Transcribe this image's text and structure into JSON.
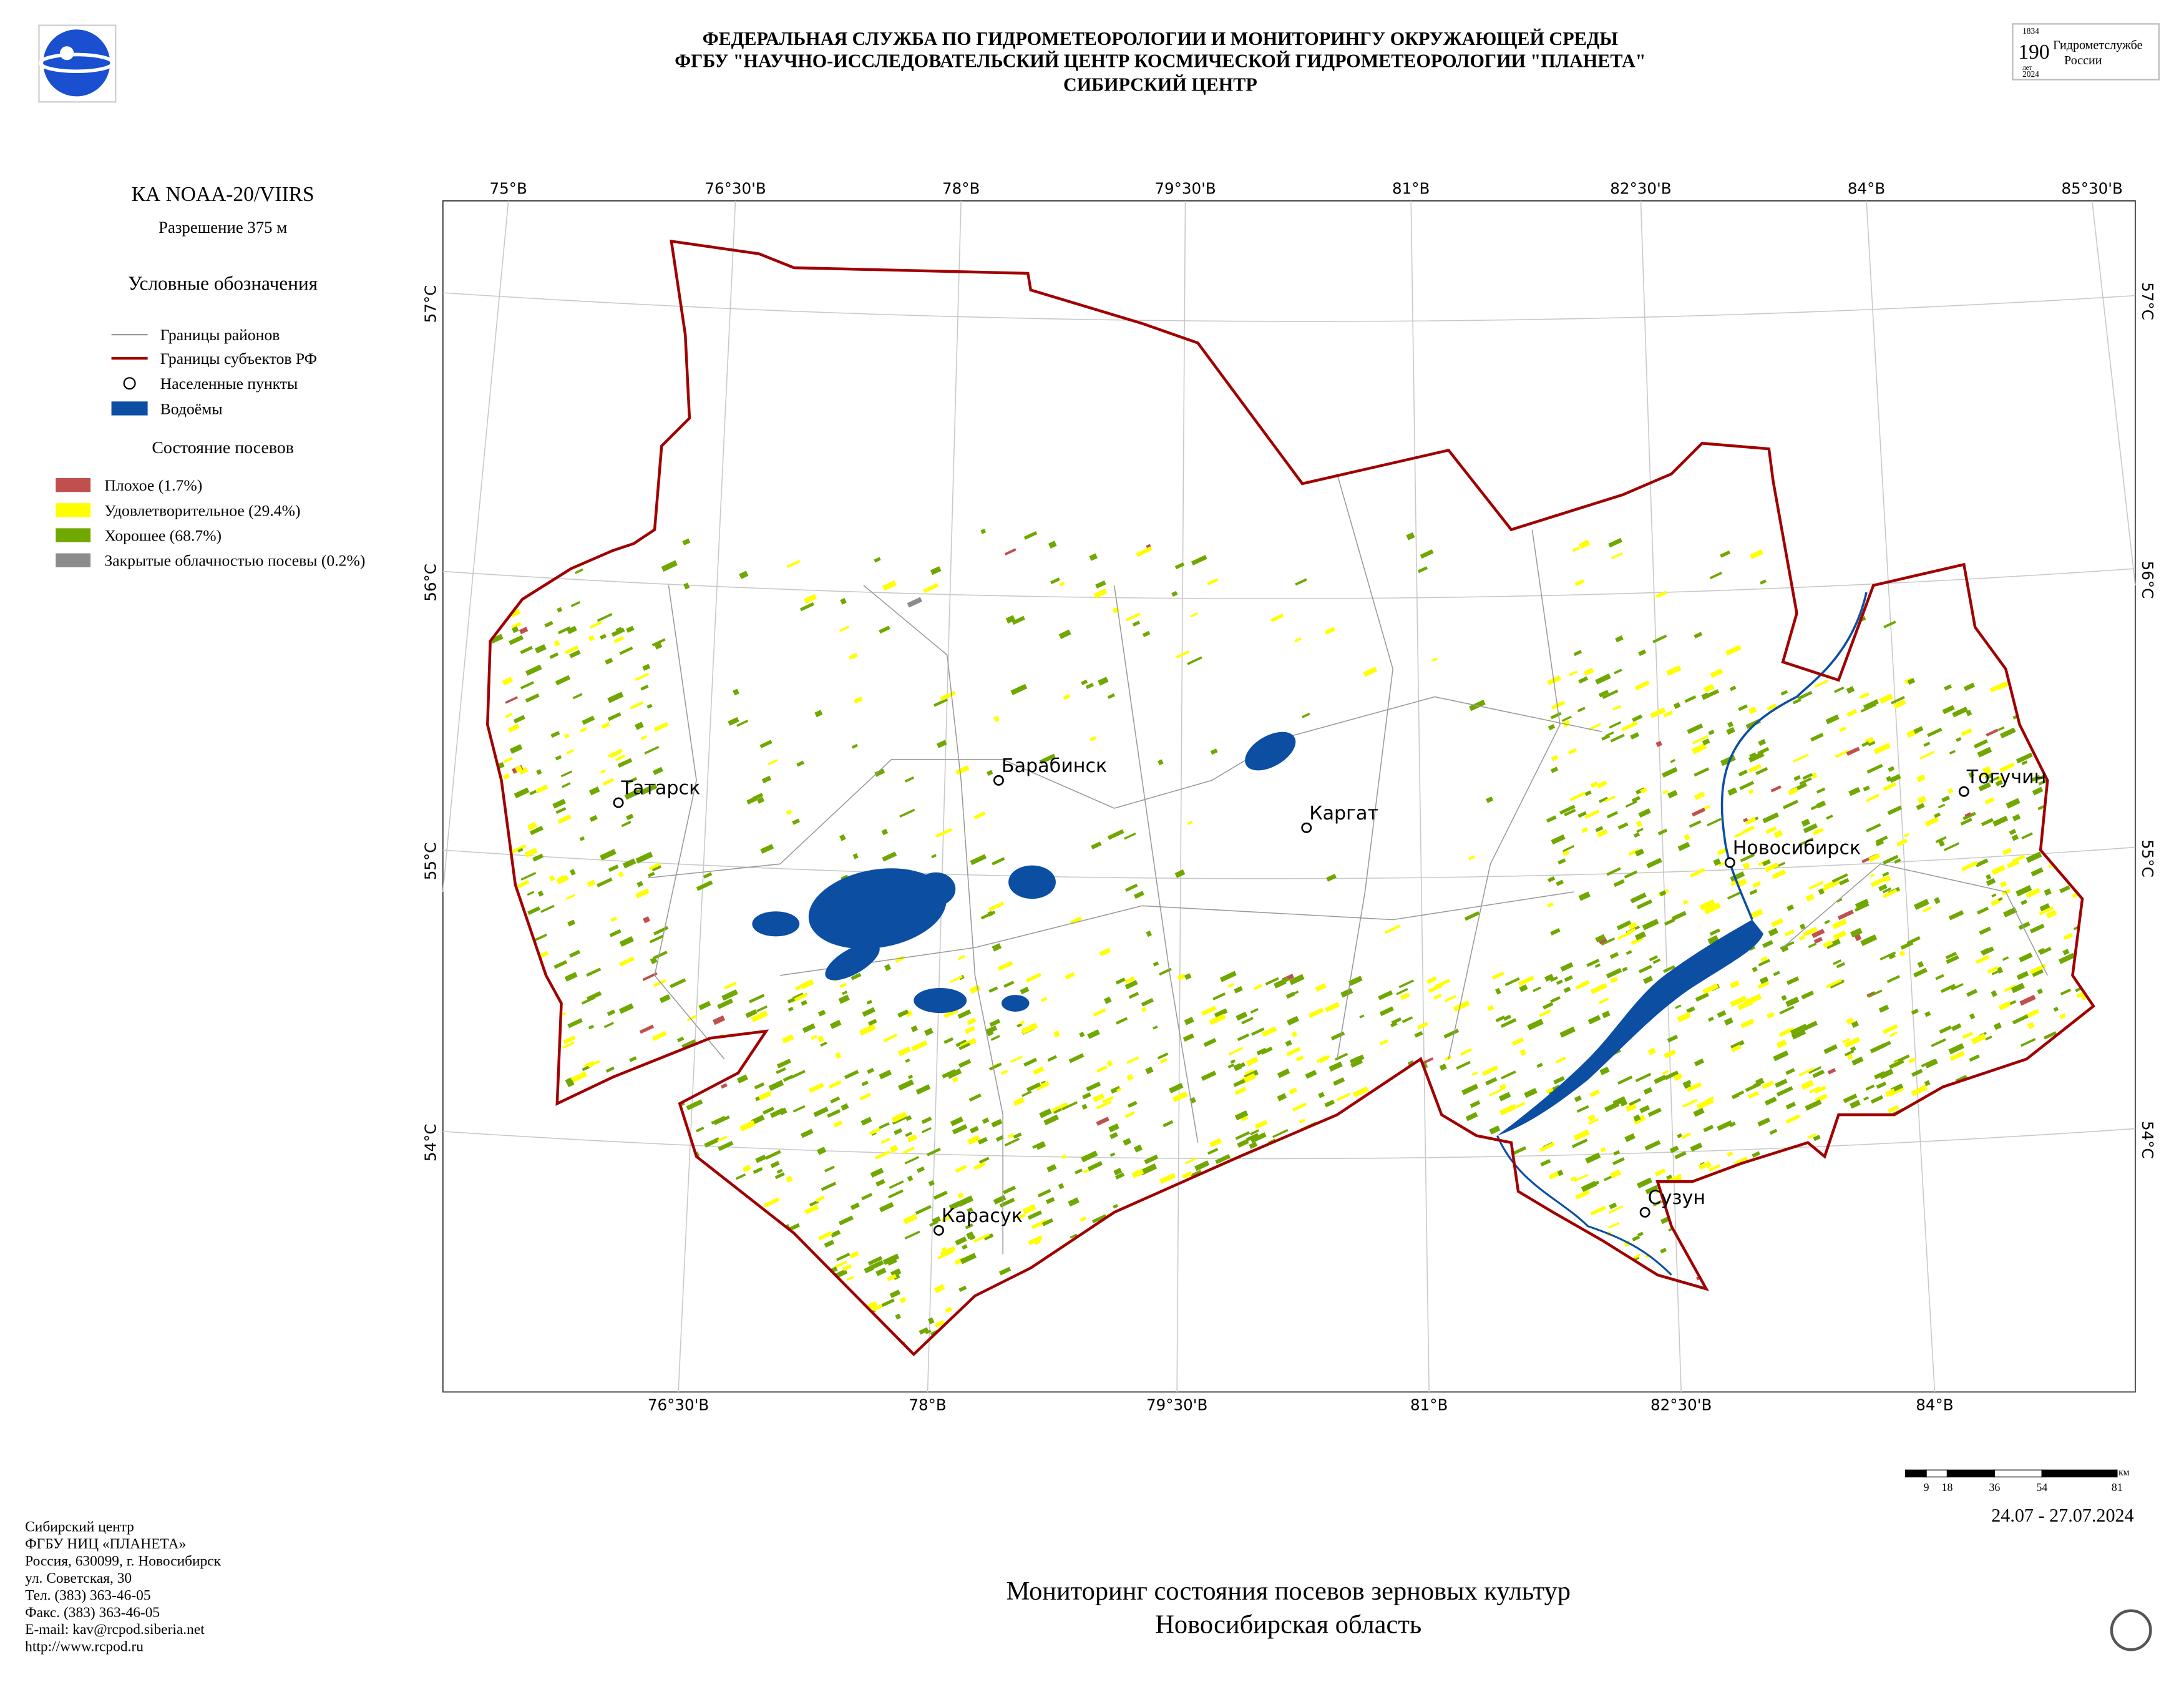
{
  "header": {
    "lines": [
      "ФЕДЕРАЛЬНАЯ СЛУЖБА ПО ГИДРОМЕТЕОРОЛОГИИ И МОНИТОРИНГУ ОКРУЖАЮЩЕЙ СРЕДЫ",
      "ФГБУ \"НАУЧНО-ИССЛЕДОВАТЕЛЬСКИЙ ЦЕНТР КОСМИЧЕСКОЙ ГИДРОМЕТЕОРОЛОГИИ \"ПЛАНЕТА\"",
      "СИБИРСКИЙ ЦЕНТР"
    ],
    "logo_right": {
      "year_start": "1834",
      "number": "190",
      "unit": "лет",
      "year_end": "2024",
      "text_1": "Гидрометслужбе",
      "text_2": "России"
    }
  },
  "legend": {
    "satellite": "КА NOAA-20/VIIRS",
    "resolution": "Разрешение 375 м",
    "title": "Условные обозначения",
    "items": [
      {
        "label": "Границы районов",
        "color": "#999999"
      },
      {
        "label": "Границы субъектов РФ",
        "color": "#a00000"
      },
      {
        "label": "Населенные пункты",
        "color": "#000000"
      },
      {
        "label": "Водоёмы",
        "color": "#0b4ea2"
      }
    ],
    "crop_title": "Состояние посевов",
    "crop_items": [
      {
        "label": "Плохое (1.7%)",
        "color": "#c0504d"
      },
      {
        "label": "Удовлетворительное (29.4%)",
        "color": "#ffff00"
      },
      {
        "label": "Хорошее (68.7%)",
        "color": "#70a800"
      },
      {
        "label": "Закрытые облачностью посевы (0.2%)",
        "color": "#8c8c8c"
      }
    ]
  },
  "map": {
    "top_lon_labels": [
      "75°В",
      "76°30'В",
      "78°В",
      "79°30'В",
      "81°В",
      "82°30'В",
      "84°В",
      "85°30'В"
    ],
    "bottom_lon_labels": [
      "76°30'В",
      "78°В",
      "79°30'В",
      "81°В",
      "82°30'В",
      "84°В"
    ],
    "left_lat_labels": [
      "57°С",
      "56°С",
      "55°С",
      "54°С"
    ],
    "right_lat_labels": [
      "57°С",
      "56°С",
      "55°С",
      "54°С"
    ],
    "cities": [
      "Татарск",
      "Барабинск",
      "Каргат",
      "Новосибирск",
      "Тогучин",
      "Карасук",
      "Сузун"
    ],
    "scale_bar": {
      "labels": [
        9,
        18,
        36,
        54,
        81
      ],
      "unit": "км"
    },
    "date": "24.07 - 27.07.2024"
  },
  "footer": {
    "contact": [
      "Сибирский центр",
      "ФГБУ НИЦ «ПЛАНЕТА»",
      "Россия, 630099, г. Новосибирск",
      "ул. Советская, 30",
      "Тел. (383) 363-46-05",
      "Факс. (383) 363-46-05",
      "E-mail: kav@rcpod.siberia.net",
      "http://www.rcpod.ru"
    ],
    "title": [
      "Мониторинг состояния посевов зерновых культур",
      "Новосибирская область"
    ]
  }
}
